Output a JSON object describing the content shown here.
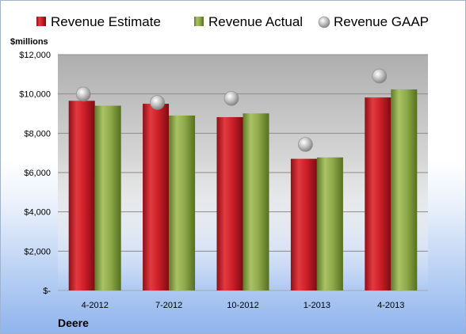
{
  "chart_data": {
    "type": "bar",
    "categories": [
      "4-2012",
      "7-2012",
      "10-2012",
      "1-2013",
      "4-2013"
    ],
    "series": [
      {
        "name": "Revenue Estimate",
        "type": "bar",
        "color": "#cc1f28",
        "values": [
          9650,
          9500,
          8820,
          6700,
          9820
        ]
      },
      {
        "name": "Revenue Actual",
        "type": "bar",
        "color": "#8faa4a",
        "values": [
          9400,
          8900,
          9010,
          6770,
          10230
        ]
      },
      {
        "name": "Revenue GAAP",
        "type": "marker",
        "color": "#a9a9a9",
        "values": [
          9990,
          9560,
          9770,
          7430,
          10910
        ]
      }
    ],
    "ylabel": "$millions",
    "ylim": [
      0,
      12000
    ],
    "yticks": [
      0,
      2000,
      4000,
      6000,
      8000,
      10000,
      12000
    ],
    "ytick_labels": [
      "$-",
      "$2,000",
      "$4,000",
      "$6,000",
      "$8,000",
      "$10,000",
      "$12,000"
    ],
    "grid": true,
    "legend_position": "top",
    "company_label": "Deere"
  }
}
